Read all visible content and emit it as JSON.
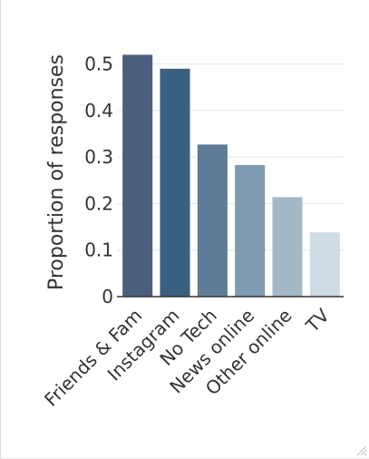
{
  "chart_data": {
    "type": "bar",
    "title": "",
    "xlabel": "",
    "ylabel": "Proportion of responses",
    "categories": [
      "Friends & Fam",
      "Instagram",
      "No Tech",
      "News online",
      "Other online",
      "TV"
    ],
    "values": [
      0.52,
      0.49,
      0.327,
      0.283,
      0.214,
      0.138
    ],
    "bar_colors": [
      "#4a5f7e",
      "#3a6080",
      "#5e7c97",
      "#7e9bb1",
      "#a3b9c8",
      "#cfdce4"
    ],
    "ylim": [
      0,
      0.55
    ],
    "yticks": [
      0,
      0.1,
      0.2,
      0.3,
      0.4,
      0.5
    ],
    "ytick_labels": [
      "0",
      "0.1",
      "0.2",
      "0.3",
      "0.4",
      "0.5"
    ],
    "grid": true,
    "legend": "none"
  }
}
